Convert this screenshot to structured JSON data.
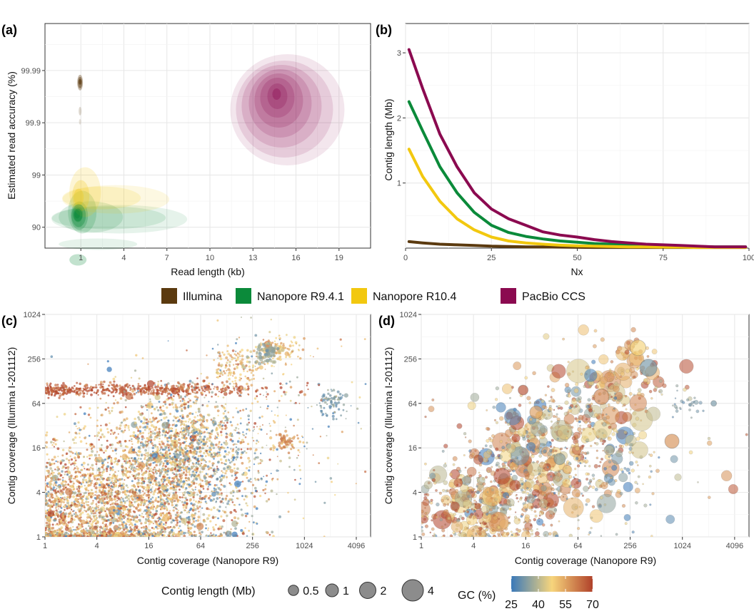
{
  "colors": {
    "illumina": "#5b3a0f",
    "r941": "#0b8a3a",
    "r104": "#f2c80f",
    "pacbio": "#8b0a50",
    "gc_low": "#3a79b9",
    "gc_mid": "#f7d57c",
    "gc_high": "#b0412a"
  },
  "legend_top": {
    "entries": [
      {
        "key": "illumina",
        "label": "Illumina"
      },
      {
        "key": "r941",
        "label": "Nanopore R9.4.1"
      },
      {
        "key": "r104",
        "label": "Nanopore R10.4"
      },
      {
        "key": "pacbio",
        "label": "PacBio CCS"
      }
    ]
  },
  "legend_bottom": {
    "size_title": "Contig length (Mb)",
    "size_entries": [
      {
        "label": "0.5",
        "value": 0.5
      },
      {
        "label": "1",
        "value": 1
      },
      {
        "label": "2",
        "value": 2
      },
      {
        "label": "4",
        "value": 4
      }
    ],
    "gc_title": "GC (%)",
    "gc_ticks": [
      "25",
      "40",
      "55",
      "70"
    ]
  },
  "chart_data": [
    {
      "panel": "(a)",
      "type": "density-contour",
      "xlabel": "Read length (kb)",
      "ylabel": "Estimated read accuracy (%)",
      "x_ticks": [
        "1",
        "4",
        "7",
        "10",
        "13",
        "16",
        "19"
      ],
      "x_tick_values": [
        1,
        4,
        7,
        10,
        13,
        16,
        19
      ],
      "xlim": [
        -1.5,
        21.2
      ],
      "y_ticks": [
        "90",
        "99",
        "99.9",
        "99.99"
      ],
      "y_scale": "phred",
      "y_tick_values": [
        90,
        99,
        99.9,
        99.99
      ],
      "series": [
        {
          "name": "Illumina",
          "key": "illumina",
          "center_x": 0.15,
          "center_accuracy": 99.985
        },
        {
          "name": "Nanopore R9.4.1",
          "key": "r941",
          "center_x": 0.7,
          "center_accuracy": 94
        },
        {
          "name": "Nanopore R10.4",
          "key": "r104",
          "center_x": 0.7,
          "center_accuracy": 97.5
        },
        {
          "name": "PacBio CCS",
          "key": "pacbio",
          "center_x": 14.8,
          "center_accuracy": 99.98
        }
      ]
    },
    {
      "panel": "(b)",
      "type": "line",
      "xlabel": "Nx",
      "ylabel": "Contig length (Mb)",
      "x_ticks": [
        "0",
        "25",
        "50",
        "75",
        "100"
      ],
      "x_tick_values": [
        0,
        25,
        50,
        75,
        100
      ],
      "xlim": [
        0,
        100
      ],
      "y_ticks": [
        "1",
        "2",
        "3"
      ],
      "y_tick_values": [
        1,
        2,
        3
      ],
      "ylim": [
        0,
        3.45
      ],
      "x": [
        1,
        5,
        10,
        15,
        20,
        25,
        30,
        35,
        40,
        45,
        50,
        55,
        60,
        65,
        70,
        75,
        80,
        85,
        90,
        95,
        99
      ],
      "series": [
        {
          "name": "Illumina",
          "key": "illumina",
          "values": [
            0.1,
            0.08,
            0.06,
            0.05,
            0.04,
            0.03,
            0.025,
            0.02,
            0.018,
            0.015,
            0.012,
            0.01,
            0.01,
            0.01,
            0.01,
            0.01,
            0.01,
            0.01,
            0.01,
            0.01,
            0.01
          ]
        },
        {
          "name": "Nanopore R9.4.1",
          "key": "r941",
          "values": [
            2.25,
            1.8,
            1.25,
            0.85,
            0.55,
            0.35,
            0.24,
            0.18,
            0.14,
            0.11,
            0.09,
            0.07,
            0.06,
            0.05,
            0.04,
            0.035,
            0.03,
            0.025,
            0.02,
            0.02,
            0.02
          ]
        },
        {
          "name": "Nanopore R10.4",
          "key": "r104",
          "values": [
            1.52,
            1.1,
            0.72,
            0.45,
            0.28,
            0.17,
            0.11,
            0.08,
            0.06,
            0.045,
            0.035,
            0.03,
            0.025,
            0.02,
            0.02,
            0.015,
            0.015,
            0.01,
            0.01,
            0.01,
            0.01
          ]
        },
        {
          "name": "PacBio CCS",
          "key": "pacbio",
          "values": [
            3.05,
            2.45,
            1.75,
            1.25,
            0.85,
            0.6,
            0.45,
            0.35,
            0.25,
            0.2,
            0.17,
            0.13,
            0.1,
            0.08,
            0.06,
            0.05,
            0.04,
            0.03,
            0.02,
            0.02,
            0.02
          ]
        }
      ]
    },
    {
      "panel": "(c)",
      "type": "scatter",
      "xlabel": "Contig coverage (Nanopore R9)",
      "ylabel": "Contig coverage (Illumina I-201112)",
      "x_scale": "log2",
      "y_scale": "log2",
      "x_ticks": [
        "1",
        "4",
        "16",
        "64",
        "256",
        "1024",
        "4096"
      ],
      "x_tick_values": [
        1,
        4,
        16,
        64,
        256,
        1024,
        4096
      ],
      "xlim": [
        1,
        6000
      ],
      "y_ticks": [
        "1",
        "4",
        "16",
        "64",
        "256",
        "1024"
      ],
      "y_tick_values": [
        1,
        4,
        16,
        64,
        256,
        1024
      ],
      "ylim": [
        1,
        1024
      ],
      "color": "GC (%)",
      "size": "Contig length (Mb)"
    },
    {
      "panel": "(d)",
      "type": "scatter",
      "xlabel": "Contig coverage (Nanopore R9)",
      "ylabel": "Contig coverage (Illumina I-201112)",
      "x_scale": "log2",
      "y_scale": "log2",
      "x_ticks": [
        "1",
        "4",
        "16",
        "64",
        "256",
        "1024",
        "4096"
      ],
      "x_tick_values": [
        1,
        4,
        16,
        64,
        256,
        1024,
        4096
      ],
      "xlim": [
        1,
        6000
      ],
      "y_ticks": [
        "1",
        "4",
        "16",
        "64",
        "256",
        "1024"
      ],
      "y_tick_values": [
        1,
        4,
        16,
        64,
        256,
        1024
      ],
      "ylim": [
        1,
        1024
      ],
      "color": "GC (%)",
      "size": "Contig length (Mb)"
    }
  ]
}
